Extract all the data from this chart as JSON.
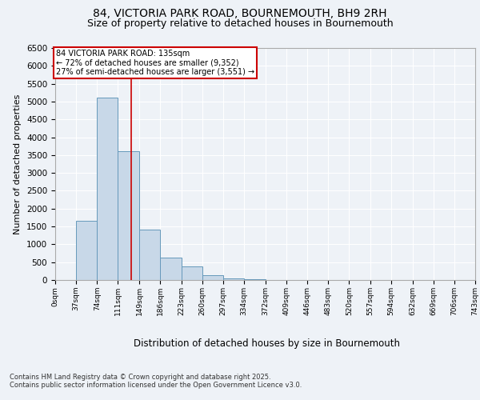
{
  "title_line1": "84, VICTORIA PARK ROAD, BOURNEMOUTH, BH9 2RH",
  "title_line2": "Size of property relative to detached houses in Bournemouth",
  "xlabel": "Distribution of detached houses by size in Bournemouth",
  "ylabel": "Number of detached properties",
  "bin_edges": [
    0,
    37,
    74,
    111,
    149,
    186,
    223,
    260,
    297,
    334,
    372,
    409,
    446,
    483,
    520,
    557,
    594,
    632,
    669,
    706,
    743
  ],
  "bin_counts": [
    5,
    1650,
    5100,
    3600,
    1420,
    620,
    370,
    130,
    50,
    15,
    5,
    3,
    2,
    1,
    1,
    0,
    0,
    0,
    0,
    0
  ],
  "bar_facecolor": "#c8d8e8",
  "bar_edgecolor": "#6699bb",
  "property_size": 135,
  "property_line_color": "#cc0000",
  "annotation_text": "84 VICTORIA PARK ROAD: 135sqm\n← 72% of detached houses are smaller (9,352)\n27% of semi-detached houses are larger (3,551) →",
  "annotation_box_color": "#cc0000",
  "ylim": [
    0,
    6500
  ],
  "yticks": [
    0,
    500,
    1000,
    1500,
    2000,
    2500,
    3000,
    3500,
    4000,
    4500,
    5000,
    5500,
    6000,
    6500
  ],
  "footer_line1": "Contains HM Land Registry data © Crown copyright and database right 2025.",
  "footer_line2": "Contains public sector information licensed under the Open Government Licence v3.0.",
  "bg_color": "#eef2f7",
  "grid_color": "#ffffff",
  "tick_label_fontsize": 6.5,
  "ylabel_fontsize": 8,
  "xlabel_fontsize": 8.5,
  "title_fontsize1": 10,
  "title_fontsize2": 9,
  "footer_fontsize": 6
}
